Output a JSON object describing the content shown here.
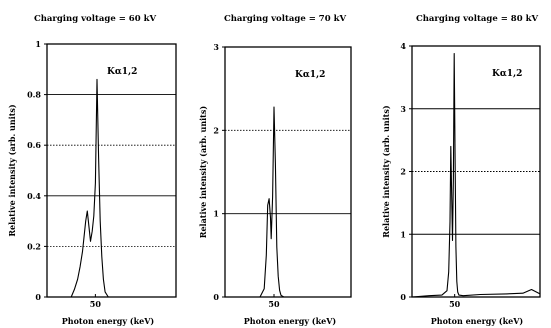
{
  "chart_data": [
    {
      "type": "line",
      "title": "Charging voltage = 60 kV",
      "xlabel": "Photon energy (keV)",
      "ylabel": "Relative intensity (arb. units)",
      "ylim": [
        0,
        1
      ],
      "xlim": [
        44,
        60
      ],
      "yticks": [
        "0",
        "0.2",
        "0.4",
        "0.6",
        "0.8",
        "1"
      ],
      "xticks": [
        "50"
      ],
      "grid": "horizontal dotted/solid",
      "annotation": "Kα1,2",
      "series": [
        {
          "x": [
            44.0,
            47.0,
            47.4,
            47.8,
            48.1,
            48.4,
            48.6,
            48.8,
            49.0,
            49.2,
            49.4,
            49.6,
            49.8,
            50.0,
            50.2,
            50.4,
            50.6,
            50.8,
            51.0,
            51.2,
            51.6,
            53.0,
            60.0
          ],
          "y": [
            0.0,
            0.0,
            0.03,
            0.07,
            0.12,
            0.18,
            0.24,
            0.3,
            0.34,
            0.28,
            0.22,
            0.26,
            0.32,
            0.45,
            0.86,
            0.55,
            0.3,
            0.16,
            0.07,
            0.02,
            0.0,
            0.0,
            0.0
          ]
        }
      ]
    },
    {
      "type": "line",
      "title": "Charging voltage = 70 kV",
      "xlabel": "Photon energy (keV)",
      "ylabel": "Relative intensity (arb. units)",
      "ylim": [
        0,
        3
      ],
      "xlim": [
        43,
        61
      ],
      "yticks": [
        "0",
        "1",
        "2",
        "3"
      ],
      "xticks": [
        "50"
      ],
      "grid": "horizontal dotted/solid",
      "annotation": "Kα1,2",
      "series": [
        {
          "x": [
            43.0,
            48.0,
            48.6,
            48.9,
            49.1,
            49.3,
            49.5,
            49.6,
            49.8,
            50.0,
            50.2,
            50.4,
            50.6,
            50.8,
            51.0,
            51.4,
            61.0
          ],
          "y": [
            0.0,
            0.0,
            0.1,
            0.5,
            1.1,
            1.18,
            0.95,
            0.7,
            1.2,
            2.28,
            1.6,
            0.6,
            0.25,
            0.08,
            0.02,
            0.0,
            0.0
          ]
        }
      ]
    },
    {
      "type": "line",
      "title": "Charging voltage = 80 kV",
      "xlabel": "Photon energy (keV)",
      "ylabel": "Relative intensity (arb. units)",
      "ylim": [
        0,
        4
      ],
      "xlim": [
        40,
        70
      ],
      "yticks": [
        "0",
        "1",
        "2",
        "3",
        "4"
      ],
      "xticks": [
        "50"
      ],
      "grid": "horizontal dotted/solid",
      "annotation": "Kα1,2",
      "series": [
        {
          "x": [
            40.0,
            44.0,
            47.0,
            48.2,
            48.6,
            48.9,
            49.1,
            49.3,
            49.5,
            49.7,
            49.9,
            50.1,
            50.3,
            50.5,
            50.7,
            51.0,
            52.0,
            56.0,
            62.0,
            66.0,
            68.0,
            70.0
          ],
          "y": [
            0.0,
            0.02,
            0.03,
            0.1,
            0.4,
            1.2,
            2.4,
            1.6,
            0.9,
            1.9,
            3.88,
            2.2,
            0.8,
            0.25,
            0.08,
            0.03,
            0.02,
            0.04,
            0.05,
            0.06,
            0.12,
            0.05
          ]
        }
      ]
    }
  ]
}
